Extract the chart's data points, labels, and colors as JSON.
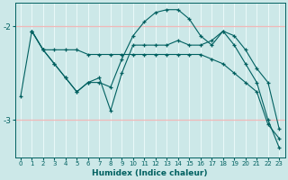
{
  "xlabel": "Humidex (Indice chaleur)",
  "xlim": [
    -0.5,
    23.5
  ],
  "ylim": [
    -3.4,
    -1.75
  ],
  "yticks": [
    -3,
    -2
  ],
  "xticks": [
    0,
    1,
    2,
    3,
    4,
    5,
    6,
    7,
    8,
    9,
    10,
    11,
    12,
    13,
    14,
    15,
    16,
    17,
    18,
    19,
    20,
    21,
    22,
    23
  ],
  "bg_color": "#cce8e8",
  "line_color": "#006060",
  "grid_color_v": "#e8f8f8",
  "grid_color_h": "#f0b8b8",
  "series": [
    {
      "x": [
        0,
        1,
        2,
        3,
        4,
        5,
        6,
        7,
        8,
        9,
        10,
        11,
        12,
        13,
        14,
        15,
        16,
        17,
        18,
        19,
        20,
        21,
        22,
        23
      ],
      "y": [
        -2.75,
        -2.05,
        -2.25,
        -2.25,
        -2.25,
        -2.25,
        -2.3,
        -2.3,
        -2.3,
        -2.3,
        -2.3,
        -2.3,
        -2.3,
        -2.3,
        -2.3,
        -2.3,
        -2.3,
        -2.35,
        -2.4,
        -2.5,
        -2.6,
        -2.7,
        -3.05,
        -3.2
      ],
      "marker": "+"
    },
    {
      "x": [
        1,
        2,
        3,
        4,
        5,
        6,
        7,
        8,
        9,
        10,
        11,
        12,
        13,
        14,
        15,
        16,
        17,
        18,
        19,
        20,
        21,
        22,
        23
      ],
      "y": [
        -2.05,
        -2.25,
        -2.4,
        -2.55,
        -2.7,
        -2.6,
        -2.55,
        -2.9,
        -2.5,
        -2.2,
        -2.2,
        -2.2,
        -2.2,
        -2.15,
        -2.2,
        -2.2,
        -2.15,
        -2.05,
        -2.1,
        -2.25,
        -2.45,
        -2.6,
        -3.1
      ],
      "marker": "+"
    },
    {
      "x": [
        1,
        2,
        3,
        4,
        5,
        6,
        7,
        8,
        9,
        10,
        11,
        12,
        13,
        14,
        15,
        16,
        17,
        18,
        19,
        20,
        21,
        22,
        23
      ],
      "y": [
        -2.05,
        -2.25,
        -2.4,
        -2.55,
        -2.7,
        -2.6,
        -2.6,
        -2.65,
        -2.35,
        -2.1,
        -1.95,
        -1.85,
        -1.82,
        -1.82,
        -1.92,
        -2.1,
        -2.2,
        -2.05,
        -2.2,
        -2.4,
        -2.6,
        -3.0,
        -3.3
      ],
      "marker": "+"
    }
  ]
}
